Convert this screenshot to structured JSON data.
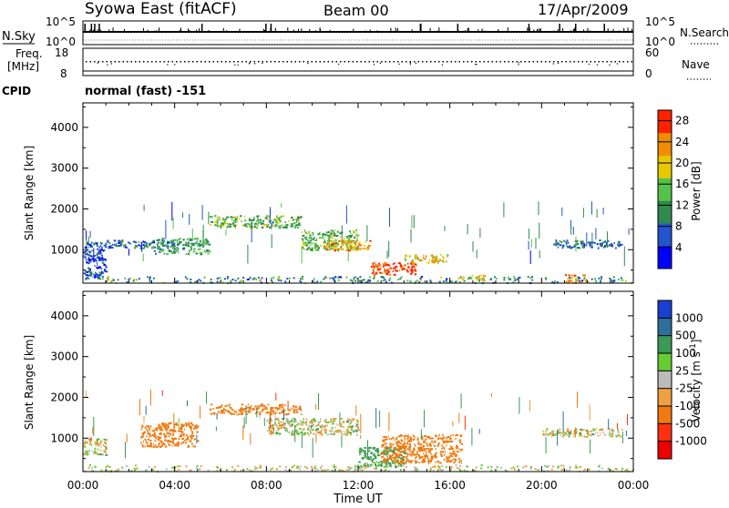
{
  "header": {
    "station": "Syowa East (fitACF)",
    "beam": "Beam 00",
    "date": "17/Apr/2009"
  },
  "noise_panel": {
    "left_label": "N.Sky",
    "right_label": "N.Search",
    "left_ticks": [
      "10^5",
      "10^0"
    ],
    "right_ticks": [
      "10^5",
      "10^0"
    ]
  },
  "freq_panel": {
    "left_label_line1": "Freq.",
    "left_label_line2": "[MHz]",
    "right_label": "Nave",
    "left_ticks": [
      "18",
      "8"
    ],
    "right_ticks": [
      "60",
      "0"
    ]
  },
  "cpid": {
    "label": "CPID",
    "value": "normal (fast) -151"
  },
  "x_axis": {
    "title": "Time UT",
    "ticks": [
      "00:00",
      "04:00",
      "08:00",
      "12:00",
      "16:00",
      "20:00",
      "00:00"
    ]
  },
  "colors": {
    "power_scale": [
      "#0000ff",
      "#2255cc",
      "#2e8a4e",
      "#54c24a",
      "#e8c800",
      "#f08c00",
      "#ff2000"
    ],
    "velocity_scale": [
      "#1a3fd0",
      "#2d6e9c",
      "#3a9a55",
      "#66cc33",
      "#bbbbbb",
      "#f0a040",
      "#f07a10",
      "#ff3010",
      "#ee0000"
    ]
  },
  "chart_data": [
    {
      "type": "heatmap",
      "title": "",
      "xlabel": "Time UT",
      "ylabel": "Slant Range [km]",
      "xlim": [
        "00:00",
        "24:00"
      ],
      "ylim": [
        180,
        4600
      ],
      "y_ticks": [
        1000,
        2000,
        3000,
        4000
      ],
      "colorbar": {
        "label": "Power [dB]",
        "ticks": [
          4,
          8,
          12,
          16,
          20,
          24,
          28
        ],
        "range": [
          0,
          30
        ]
      },
      "regions": [
        {
          "time": "00:00-01:00",
          "range_km": [
            300,
            1200
          ],
          "value_db": 6
        },
        {
          "time": "01:00-04:00",
          "range_km": [
            1050,
            1250
          ],
          "value_db": 8
        },
        {
          "time": "03:00-05:30",
          "range_km": [
            900,
            1300
          ],
          "value_db": 12
        },
        {
          "time": "05:30-09:30",
          "range_km": [
            1550,
            1850
          ],
          "value_db": 14
        },
        {
          "time": "09:30-12:00",
          "range_km": [
            1000,
            1500
          ],
          "value_db": 14
        },
        {
          "time": "10:30-12:30",
          "range_km": [
            1000,
            1250
          ],
          "value_db": 22
        },
        {
          "time": "12:30-14:30",
          "range_km": [
            400,
            700
          ],
          "value_db": 28
        },
        {
          "time": "14:00-16:00",
          "range_km": [
            700,
            900
          ],
          "value_db": 20
        },
        {
          "time": "16:30-17:30",
          "range_km": [
            250,
            400
          ],
          "value_db": 20
        },
        {
          "time": "20:30-23:30",
          "range_km": [
            1050,
            1250
          ],
          "value_db": 8
        },
        {
          "time": "21:00-22:00",
          "range_km": [
            200,
            400
          ],
          "value_db": 24
        }
      ]
    },
    {
      "type": "heatmap",
      "title": "",
      "xlabel": "Time UT",
      "ylabel": "Slant Range [km]",
      "xlim": [
        "00:00",
        "24:00"
      ],
      "ylim": [
        180,
        4600
      ],
      "y_ticks": [
        1000,
        2000,
        3000,
        4000
      ],
      "colorbar": {
        "label": "Velocity [m s^-1]",
        "ticks": [
          1000,
          500,
          100,
          25,
          -25,
          -100,
          -500,
          -1000
        ]
      },
      "regions": [
        {
          "time": "00:00-01:00",
          "range_km": [
            600,
            1000
          ],
          "value_ms": 0
        },
        {
          "time": "02:30-05:00",
          "range_km": [
            800,
            1400
          ],
          "value_ms": -300
        },
        {
          "time": "05:30-09:30",
          "range_km": [
            1600,
            1850
          ],
          "value_ms": -200
        },
        {
          "time": "08:00-12:00",
          "range_km": [
            1100,
            1500
          ],
          "value_ms": 0
        },
        {
          "time": "12:00-14:00",
          "range_km": [
            300,
            800
          ],
          "value_ms": 200
        },
        {
          "time": "13:00-16:30",
          "range_km": [
            400,
            1100
          ],
          "value_ms": -300
        },
        {
          "time": "20:00-23:30",
          "range_km": [
            1050,
            1250
          ],
          "value_ms": 0
        }
      ]
    }
  ]
}
